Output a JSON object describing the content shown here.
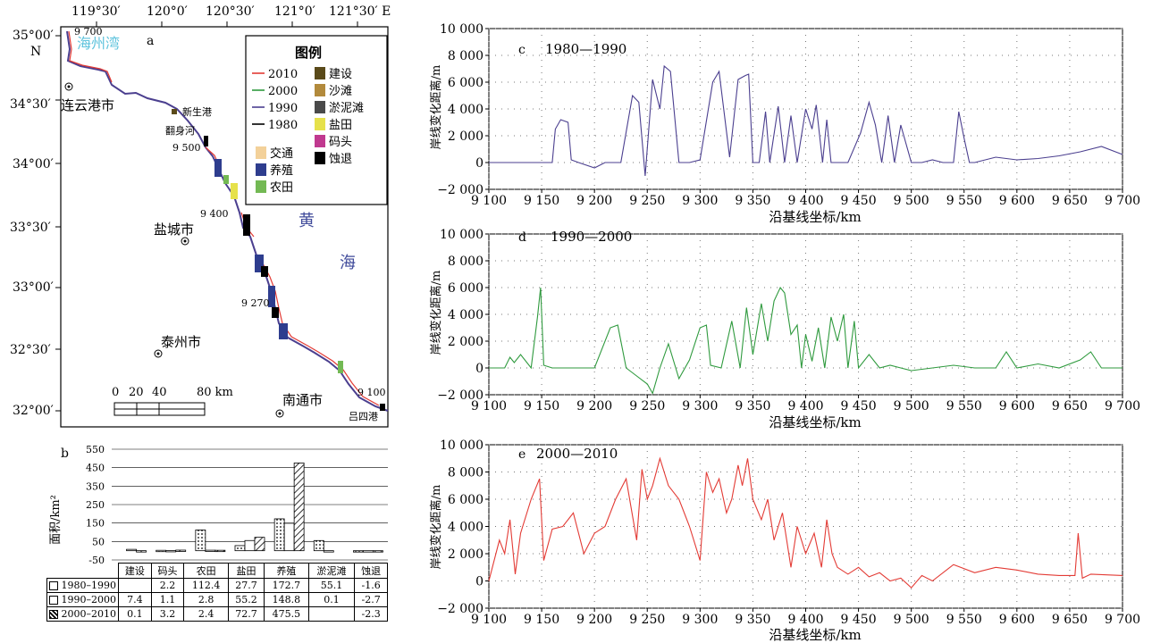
{
  "colors": {
    "y2010": "#e33b35",
    "y2000": "#2f9a3e",
    "y1990": "#4b3f8f",
    "y1980": "#000000",
    "build": "#5a4a1a",
    "beach": "#b28a3c",
    "mud": "#4a4a4a",
    "salt": "#e6e14b",
    "wharf": "#c0398f",
    "erosion": "#000000",
    "traffic": "#f3d19a",
    "aqua": "#2e3d8e",
    "farm": "#73b954",
    "sea_text": "#5ec3dd",
    "yellow_sea": "#3f4a9a"
  },
  "map": {
    "panel_label": "a",
    "lon_ticks": [
      "119°30′",
      "120°0′",
      "120°30′",
      "121°0′",
      "121°30′ E"
    ],
    "lat_ticks": [
      "35°00′",
      "34°30′",
      "34°00′",
      "33°30′",
      "33°00′",
      "32°30′",
      "32°00′"
    ],
    "north_label": "N",
    "bay": "海州湾",
    "sea_1": "黄",
    "sea_2": "海",
    "cities": [
      "连云港市",
      "盐城市",
      "泰州市",
      "南通市"
    ],
    "places": [
      "新生港",
      "翻身河",
      "吕四港"
    ],
    "km_markers": [
      "9 700",
      "9 500",
      "9 400",
      "9 270",
      "9 100"
    ],
    "scale_labels": [
      "0",
      "20",
      "40",
      "80 km"
    ],
    "legend": {
      "title": "图例",
      "lines": [
        "2010",
        "2000",
        "1990",
        "1980"
      ],
      "fills_right": [
        "建设",
        "沙滩",
        "淤泥滩",
        "盐田",
        "码头",
        "蚀退"
      ],
      "fills_left": [
        "交通",
        "养殖",
        "农田"
      ]
    }
  },
  "bar_chart": {
    "panel_label": "b",
    "ylabel": "面积/km²",
    "yticks": [
      "550",
      "450",
      "350",
      "250",
      "150",
      "50",
      "-50"
    ],
    "categories": [
      "建设",
      "码头",
      "农田",
      "盐田",
      "养殖",
      "淤泥滩",
      "蚀退"
    ],
    "row_labels": [
      "1980–1990",
      "1990–2000",
      "2000–2010"
    ],
    "table": [
      [
        "",
        "2.2",
        "112.4",
        "27.7",
        "172.7",
        "55.1",
        "-1.6"
      ],
      [
        "7.4",
        "1.1",
        "2.8",
        "55.2",
        "148.8",
        "0.1",
        "-2.7"
      ],
      [
        "0.1",
        "3.2",
        "2.4",
        "72.7",
        "475.5",
        "",
        "-2.3"
      ]
    ]
  },
  "line_panels": [
    {
      "panel_label": "c",
      "period": "1980—1990",
      "ylabel": "岸线变化距离/m",
      "xlabel": "沿基线坐标/km"
    },
    {
      "panel_label": "d",
      "period": "1990—2000",
      "ylabel": "岸线变化距离/m",
      "xlabel": "沿基线坐标/km"
    },
    {
      "panel_label": "e",
      "period": "2000—2010",
      "ylabel": "岸线变化距离/m",
      "xlabel": "沿基线坐标/km"
    }
  ],
  "line_axis": {
    "yticks": [
      "10 000",
      "8 000",
      "6 000",
      "4 000",
      "2 000",
      "0",
      "−2 000"
    ],
    "xticks": [
      "9 100",
      "9 150",
      "9 200",
      "9 250",
      "9 300",
      "9 350",
      "9 400",
      "9 450",
      "9 500",
      "9 550",
      "9 600",
      "9 650",
      "9 700"
    ]
  },
  "chart_data": [
    {
      "type": "bar",
      "title": "",
      "ylabel": "面积/km²",
      "ylim": [
        -50,
        550
      ],
      "categories": [
        "建设",
        "码头",
        "农田",
        "盐田",
        "养殖",
        "淤泥滩",
        "蚀退"
      ],
      "series": [
        {
          "name": "1980–1990",
          "values": [
            0,
            2.2,
            112.4,
            27.7,
            172.7,
            55.1,
            -1.6
          ]
        },
        {
          "name": "1990–2000",
          "values": [
            7.4,
            1.1,
            2.8,
            55.2,
            148.8,
            0.1,
            -2.7
          ]
        },
        {
          "name": "2000–2010",
          "values": [
            0.1,
            3.2,
            2.4,
            72.7,
            475.5,
            0,
            -2.3
          ]
        }
      ]
    },
    {
      "type": "line",
      "title": "1980—1990",
      "xlabel": "沿基线坐标/km",
      "ylabel": "岸线变化距离/m",
      "xlim": [
        9100,
        9700
      ],
      "ylim": [
        -2000,
        10000
      ],
      "series": [
        {
          "x": [
            9100,
            9160,
            9163,
            9168,
            9175,
            9178,
            9185,
            9200,
            9210,
            9225,
            9236,
            9242,
            9248,
            9255,
            9262,
            9266,
            9272,
            9280,
            9290,
            9300,
            9312,
            9318,
            9328,
            9336,
            9343,
            9346,
            9350,
            9356,
            9362,
            9366,
            9374,
            9380,
            9386,
            9392,
            9400,
            9406,
            9410,
            9416,
            9420,
            9424,
            9430,
            9440,
            9452,
            9460,
            9466,
            9472,
            9478,
            9484,
            9490,
            9500,
            9510,
            9520,
            9530,
            9540,
            9545,
            9550,
            9555,
            9560,
            9580,
            9600,
            9620,
            9640,
            9660,
            9680,
            9700
          ],
          "values": [
            0,
            0,
            2500,
            3200,
            3000,
            200,
            0,
            -400,
            0,
            0,
            5000,
            4500,
            -1000,
            6200,
            4000,
            7200,
            6800,
            0,
            0,
            200,
            6000,
            6800,
            400,
            6200,
            6500,
            6600,
            0,
            0,
            3800,
            0,
            4200,
            0,
            3500,
            0,
            4000,
            2500,
            4300,
            0,
            3200,
            0,
            0,
            0,
            2200,
            4500,
            2800,
            0,
            3500,
            0,
            2800,
            0,
            0,
            200,
            0,
            0,
            3800,
            1800,
            0,
            0,
            400,
            200,
            300,
            500,
            800,
            1200,
            600
          ]
        }
      ]
    },
    {
      "type": "line",
      "title": "1990—2000",
      "xlabel": "沿基线坐标/km",
      "ylabel": "岸线变化距离/m",
      "xlim": [
        9100,
        9700
      ],
      "ylim": [
        -2000,
        10000
      ],
      "series": [
        {
          "x": [
            9100,
            9115,
            9120,
            9124,
            9130,
            9140,
            9146,
            9149,
            9152,
            9160,
            9180,
            9200,
            9215,
            9222,
            9230,
            9240,
            9250,
            9255,
            9262,
            9270,
            9280,
            9290,
            9300,
            9306,
            9310,
            9320,
            9330,
            9338,
            9344,
            9350,
            9358,
            9364,
            9370,
            9376,
            9380,
            9386,
            9392,
            9396,
            9400,
            9406,
            9412,
            9418,
            9424,
            9430,
            9436,
            9440,
            9446,
            9450,
            9460,
            9470,
            9480,
            9490,
            9500,
            9520,
            9540,
            9560,
            9580,
            9590,
            9600,
            9620,
            9640,
            9660,
            9670,
            9680,
            9700
          ],
          "values": [
            0,
            0,
            800,
            400,
            1000,
            0,
            3800,
            6000,
            200,
            0,
            0,
            0,
            3000,
            3200,
            0,
            -600,
            -1200,
            -1900,
            0,
            1800,
            -800,
            600,
            3000,
            3200,
            200,
            0,
            3500,
            0,
            4500,
            1000,
            4800,
            2000,
            5000,
            6000,
            5600,
            2500,
            3200,
            0,
            2500,
            500,
            3000,
            0,
            3800,
            2000,
            4000,
            0,
            3500,
            0,
            1000,
            0,
            200,
            0,
            -200,
            0,
            200,
            0,
            0,
            1200,
            0,
            300,
            0,
            600,
            1200,
            0,
            0
          ]
        }
      ]
    },
    {
      "type": "line",
      "title": "2000—2010",
      "xlabel": "沿基线坐标/km",
      "ylabel": "岸线变化距离/m",
      "xlim": [
        9100,
        9700
      ],
      "ylim": [
        -2000,
        10000
      ],
      "series": [
        {
          "x": [
            9100,
            9110,
            9115,
            9120,
            9125,
            9130,
            9140,
            9148,
            9152,
            9160,
            9170,
            9180,
            9190,
            9200,
            9210,
            9220,
            9230,
            9240,
            9245,
            9250,
            9255,
            9262,
            9270,
            9280,
            9290,
            9300,
            9306,
            9312,
            9318,
            9325,
            9330,
            9336,
            9340,
            9345,
            9350,
            9358,
            9364,
            9370,
            9378,
            9386,
            9392,
            9400,
            9408,
            9415,
            9420,
            9425,
            9430,
            9440,
            9450,
            9460,
            9470,
            9480,
            9490,
            9500,
            9510,
            9520,
            9540,
            9560,
            9580,
            9600,
            9620,
            9640,
            9655,
            9658,
            9662,
            9670,
            9700
          ],
          "values": [
            0,
            3000,
            2000,
            4500,
            500,
            3500,
            6000,
            7500,
            1500,
            3800,
            4000,
            5000,
            2000,
            3500,
            4000,
            6000,
            7500,
            3000,
            8200,
            6000,
            7000,
            9000,
            7000,
            6000,
            4000,
            1500,
            8000,
            6500,
            7500,
            5000,
            6000,
            8500,
            7000,
            9000,
            6000,
            4500,
            6000,
            3000,
            5000,
            1000,
            4000,
            2000,
            3500,
            1000,
            4500,
            2000,
            1000,
            500,
            1000,
            300,
            600,
            0,
            200,
            -500,
            400,
            0,
            1200,
            600,
            1000,
            800,
            500,
            400,
            400,
            3500,
            200,
            500,
            400
          ]
        }
      ]
    }
  ]
}
